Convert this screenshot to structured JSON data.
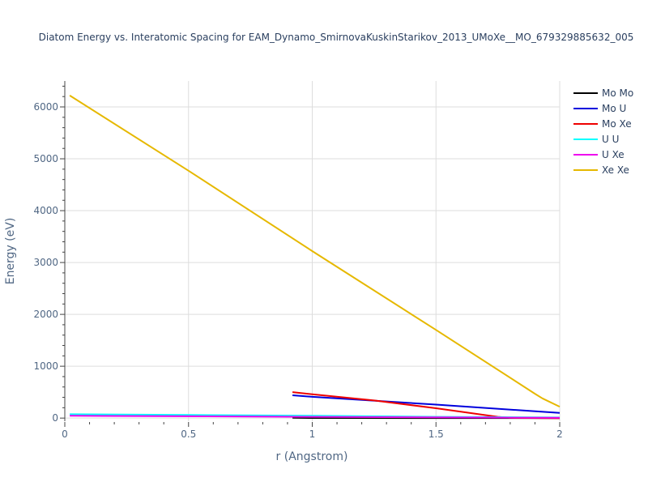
{
  "chart_data": {
    "type": "line",
    "title": "Diatom Energy vs. Interatomic Spacing for EAM_Dynamo_SmirnovaKuskinStarikov_2013_UMoXe__MO_679329885632_005",
    "xlabel": "r (Angstrom)",
    "ylabel": "Energy (eV)",
    "xlim": [
      0,
      2
    ],
    "ylim": [
      -60,
      6500
    ],
    "xticks": [
      0,
      0.5,
      1,
      1.5,
      2
    ],
    "xtick_labels": [
      "0",
      "0.5",
      "1",
      "1.5",
      "2"
    ],
    "yticks": [
      0,
      1000,
      2000,
      3000,
      4000,
      5000,
      6000
    ],
    "ytick_labels": [
      "0",
      "1000",
      "2000",
      "3000",
      "4000",
      "5000",
      "6000"
    ],
    "grid": true,
    "legend_position": "top-right",
    "series": [
      {
        "name": "Mo Mo",
        "color": "#000000",
        "x": [
          0.92,
          1.0,
          1.5,
          2.0
        ],
        "y": [
          5,
          3,
          1,
          0
        ]
      },
      {
        "name": "Mo U",
        "color": "#0000dd",
        "x": [
          0.92,
          1.0,
          1.5,
          2.0
        ],
        "y": [
          440,
          410,
          260,
          100
        ]
      },
      {
        "name": "Mo Xe",
        "color": "#ee0000",
        "x": [
          0.92,
          1.0,
          1.25,
          1.5,
          1.75,
          1.8,
          2.0
        ],
        "y": [
          500,
          460,
          340,
          190,
          25,
          5,
          0
        ]
      },
      {
        "name": "U U",
        "color": "#00ffff",
        "x": [
          0.02,
          0.5,
          1.0,
          1.5,
          2.0
        ],
        "y": [
          75,
          60,
          45,
          25,
          12
        ]
      },
      {
        "name": "U Xe",
        "color": "#ee00ee",
        "x": [
          0.02,
          0.5,
          1.0,
          1.5,
          2.0
        ],
        "y": [
          45,
          35,
          25,
          15,
          5
        ]
      },
      {
        "name": "Xe Xe",
        "color": "#e6b800",
        "x": [
          0.02,
          0.5,
          1.0,
          1.5,
          1.9,
          1.93,
          2.0
        ],
        "y": [
          6220,
          4770,
          3220,
          1700,
          470,
          380,
          220
        ]
      }
    ]
  }
}
